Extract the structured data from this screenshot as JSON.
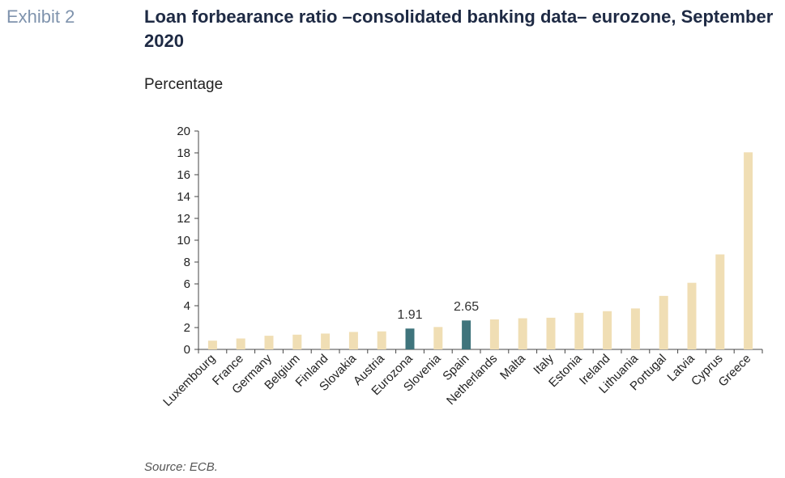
{
  "exhibit_label": "Exhibit 2",
  "title": "Loan forbearance ratio –consolidated banking data– eurozone, September 2020",
  "source": "Source: ECB.",
  "colors": {
    "default_bar": "#f0deb4",
    "highlight_bar": "#3f747c",
    "axis": "#444444",
    "text": "#222222"
  },
  "chart_data": {
    "type": "bar",
    "title": "Loan forbearance ratio –consolidated banking data– eurozone, September 2020",
    "subtitle": "Percentage",
    "ylabel": "",
    "xlabel": "",
    "ylim": [
      0,
      20
    ],
    "yticks": [
      0,
      2,
      4,
      6,
      8,
      10,
      12,
      14,
      16,
      18,
      20
    ],
    "categories": [
      "Luxembourg",
      "France",
      "Germany",
      "Belgium",
      "Finland",
      "Slovakia",
      "Austria",
      "Eurozona",
      "Slovenia",
      "Spain",
      "Netherlands",
      "Malta",
      "Italy",
      "Estonia",
      "Ireland",
      "Lithuania",
      "Portugal",
      "Latvia",
      "Cyprus",
      "Greece"
    ],
    "values": [
      0.8,
      1.0,
      1.25,
      1.35,
      1.45,
      1.6,
      1.65,
      1.91,
      2.05,
      2.65,
      2.75,
      2.85,
      2.9,
      3.35,
      3.5,
      3.75,
      4.9,
      6.1,
      8.7,
      18.05
    ],
    "highlighted": [
      "Eurozona",
      "Spain"
    ],
    "data_labels": [
      {
        "category": "Eurozona",
        "text": "1.91"
      },
      {
        "category": "Spain",
        "text": "2.65"
      }
    ],
    "grid": false,
    "legend": "none"
  }
}
